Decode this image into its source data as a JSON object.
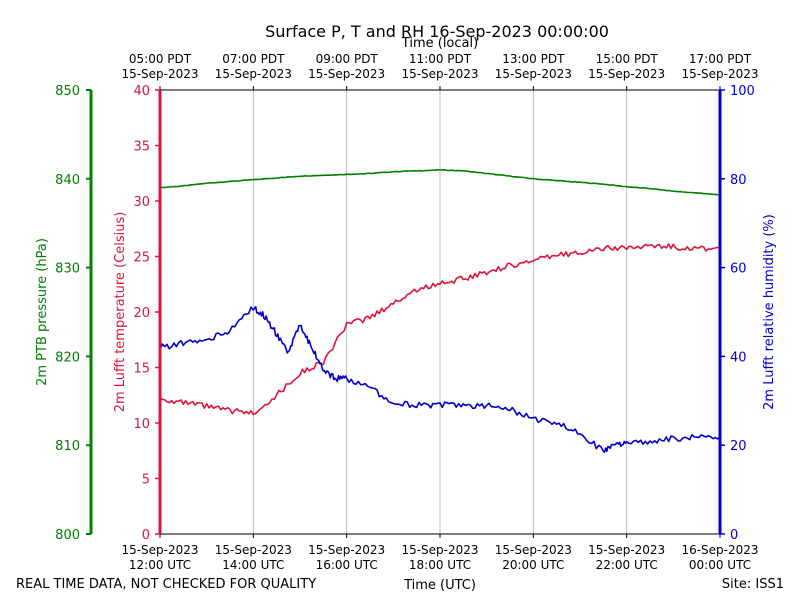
{
  "chart_data": {
    "type": "line",
    "title": "Surface P, T and RH 16-Sep-2023 00:00:00",
    "top_axis_label": "Time (local)",
    "xlabel": "Time (UTC)",
    "x_range_hours_utc": [
      12,
      24
    ],
    "x_ticks_hours": [
      12,
      14,
      16,
      18,
      20,
      22,
      24
    ],
    "x_ticks_bottom": [
      [
        "15-Sep-2023",
        "12:00 UTC"
      ],
      [
        "15-Sep-2023",
        "14:00 UTC"
      ],
      [
        "15-Sep-2023",
        "16:00 UTC"
      ],
      [
        "15-Sep-2023",
        "18:00 UTC"
      ],
      [
        "15-Sep-2023",
        "20:00 UTC"
      ],
      [
        "15-Sep-2023",
        "22:00 UTC"
      ],
      [
        "16-Sep-2023",
        "00:00 UTC"
      ]
    ],
    "x_ticks_top": [
      [
        "05:00 PDT",
        "15-Sep-2023"
      ],
      [
        "07:00 PDT",
        "15-Sep-2023"
      ],
      [
        "09:00 PDT",
        "15-Sep-2023"
      ],
      [
        "11:00 PDT",
        "15-Sep-2023"
      ],
      [
        "13:00 PDT",
        "15-Sep-2023"
      ],
      [
        "15:00 PDT",
        "15-Sep-2023"
      ],
      [
        "17:00 PDT",
        "15-Sep-2023"
      ]
    ],
    "grid": "vertical",
    "axes": {
      "pressure": {
        "label": "2m PTB pressure (hPa)",
        "ylim": [
          800,
          850
        ],
        "ticks": [
          800,
          810,
          820,
          830,
          840,
          850
        ],
        "color": "#008000"
      },
      "temperature": {
        "label": "2m Lufft temperature (Celsius)",
        "ylim": [
          0,
          40
        ],
        "ticks": [
          0,
          5,
          10,
          15,
          20,
          25,
          30,
          35,
          40
        ],
        "color": "#dc143c"
      },
      "humidity": {
        "label": "2m Lufft relative humidity (%)",
        "ylim": [
          0,
          100
        ],
        "ticks": [
          0,
          20,
          40,
          60,
          80,
          100
        ],
        "color": "#0000cd"
      }
    },
    "series": [
      {
        "name": "2m PTB pressure",
        "axis": "pressure",
        "color": "#008000",
        "x": [
          12.0,
          12.5,
          13.0,
          13.5,
          14.0,
          14.5,
          15.0,
          15.5,
          16.0,
          16.5,
          17.0,
          17.5,
          18.0,
          18.5,
          19.0,
          19.5,
          20.0,
          20.5,
          21.0,
          21.5,
          22.0,
          22.5,
          23.0,
          23.5,
          24.0
        ],
        "values": [
          839.0,
          839.2,
          839.5,
          839.7,
          839.9,
          840.1,
          840.3,
          840.4,
          840.5,
          840.6,
          840.8,
          840.9,
          841.0,
          840.9,
          840.6,
          840.3,
          840.0,
          839.8,
          839.6,
          839.4,
          839.1,
          838.9,
          838.6,
          838.4,
          838.2
        ]
      },
      {
        "name": "2m Lufft temperature",
        "axis": "temperature",
        "color": "#dc143c",
        "x": [
          12.0,
          12.5,
          13.0,
          13.5,
          14.0,
          14.5,
          15.0,
          15.5,
          16.0,
          16.5,
          17.0,
          17.5,
          18.0,
          18.5,
          19.0,
          19.5,
          20.0,
          20.5,
          21.0,
          21.5,
          22.0,
          22.5,
          23.0,
          23.5,
          24.0
        ],
        "values": [
          12.2,
          11.8,
          11.5,
          11.1,
          10.9,
          12.5,
          14.5,
          15.5,
          18.8,
          19.5,
          20.8,
          22.0,
          22.6,
          23.0,
          23.6,
          24.2,
          24.6,
          25.1,
          25.4,
          25.7,
          25.8,
          25.9,
          25.9,
          25.7,
          25.7
        ]
      },
      {
        "name": "2m Lufft relative humidity",
        "axis": "humidity",
        "color": "#0000cd",
        "x": [
          12.0,
          12.5,
          13.0,
          13.5,
          14.0,
          14.25,
          14.5,
          14.75,
          15.0,
          15.25,
          15.5,
          15.75,
          16.0,
          16.5,
          17.0,
          17.5,
          18.0,
          18.5,
          19.0,
          19.5,
          20.0,
          20.5,
          21.0,
          21.5,
          21.75,
          22.0,
          22.5,
          23.0,
          23.5,
          24.0
        ],
        "values": [
          42.0,
          43.0,
          43.5,
          46.0,
          51.0,
          49.0,
          45.0,
          40.5,
          47.5,
          42.0,
          37.0,
          35.0,
          35.0,
          33.0,
          29.5,
          29.0,
          29.0,
          29.0,
          29.0,
          28.0,
          26.0,
          25.0,
          23.0,
          18.5,
          20.0,
          20.5,
          21.0,
          21.5,
          22.0,
          22.0
        ]
      }
    ],
    "footer_left": "REAL TIME DATA, NOT CHECKED FOR QUALITY",
    "footer_right": "Site: ISS1"
  }
}
